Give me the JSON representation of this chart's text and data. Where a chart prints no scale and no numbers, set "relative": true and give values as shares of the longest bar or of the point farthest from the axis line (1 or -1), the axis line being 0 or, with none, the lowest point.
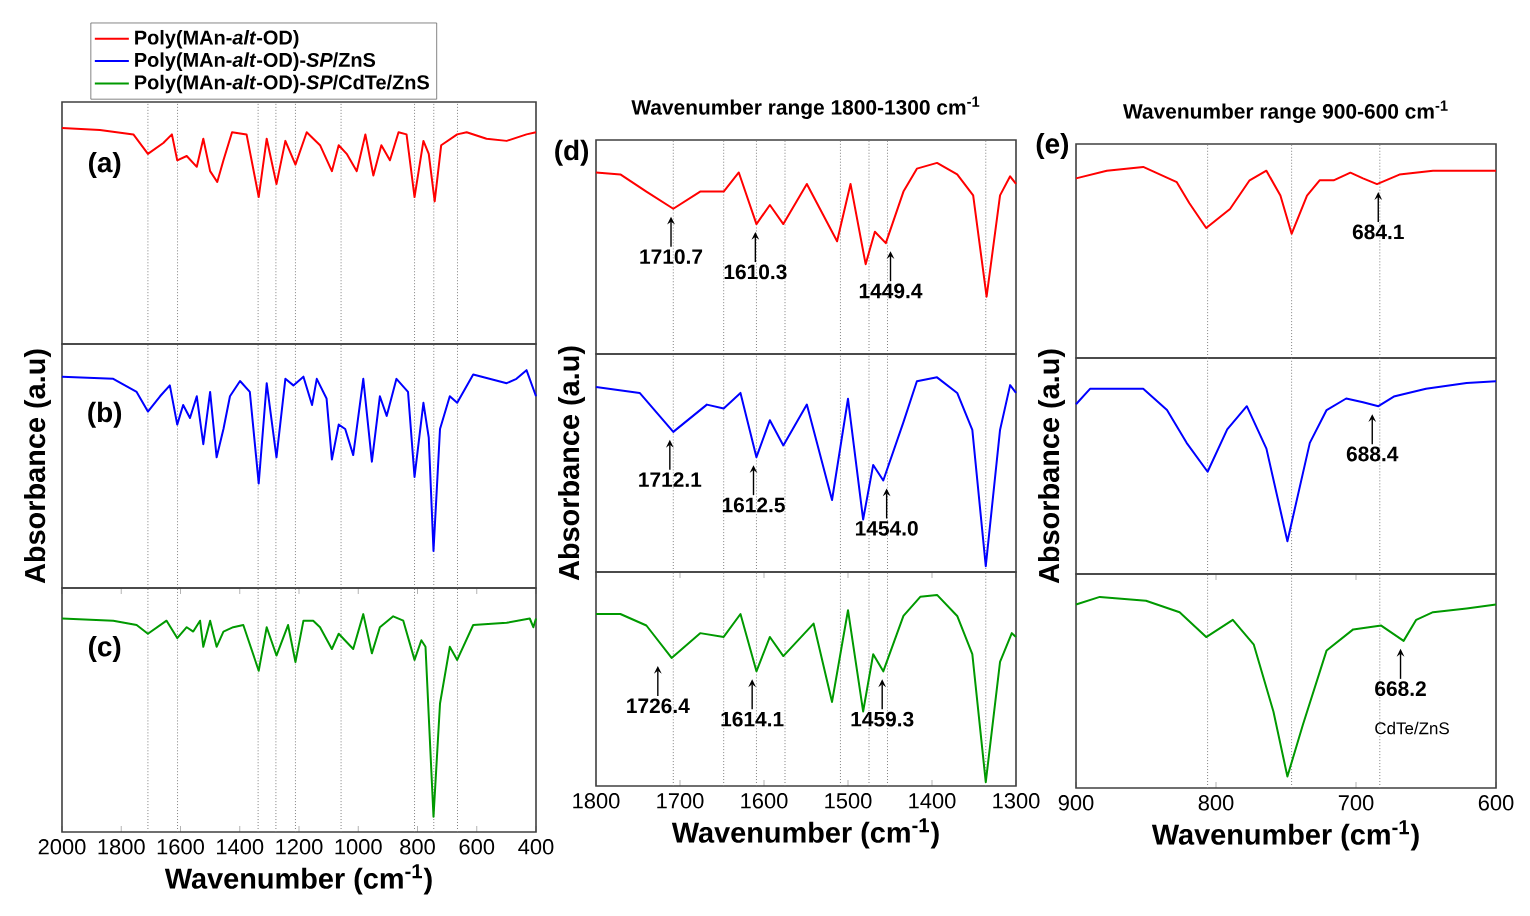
{
  "chart_data": [
    {
      "type": "line",
      "relative": true,
      "xlim": [
        2000,
        400
      ],
      "legend": "top left",
      "annotations": [
        "(a)"
      ],
      "ref_lines": [
        {
          "axis": "x",
          "value": 1710,
          "color": "#808080",
          "line_style": "dotted"
        },
        {
          "axis": "x",
          "value": 1610,
          "color": "#808080",
          "line_style": "dotted"
        },
        {
          "axis": "x",
          "value": 1338,
          "color": "#808080",
          "line_style": "dotted"
        },
        {
          "axis": "x",
          "value": 1278,
          "color": "#808080",
          "line_style": "dotted"
        },
        {
          "axis": "x",
          "value": 1212,
          "color": "#808080",
          "line_style": "dotted"
        },
        {
          "axis": "x",
          "value": 1058,
          "color": "#808080",
          "line_style": "dotted"
        },
        {
          "axis": "x",
          "value": 810,
          "color": "#808080",
          "line_style": "dotted"
        },
        {
          "axis": "x",
          "value": 745,
          "color": "#808080",
          "line_style": "dotted"
        },
        {
          "axis": "x",
          "value": 665,
          "color": "#808080",
          "line_style": "dotted"
        }
      ],
      "series": [
        {
          "name": "Poly(MAn-*alt*-OD)",
          "color": "#ff0000",
          "x": [
            2000,
            1872,
            1759,
            1710,
            1658,
            1629,
            1611,
            1579,
            1545,
            1523,
            1500,
            1476,
            1455,
            1426,
            1377,
            1336,
            1309,
            1276,
            1246,
            1212,
            1174,
            1129,
            1089,
            1066,
            1039,
            1005,
            976,
            949,
            922,
            893,
            864,
            837,
            810,
            780,
            762,
            742,
            720,
            666,
            634,
            567,
            499,
            432,
            400
          ],
          "values": [
            1.0,
            0.99,
            0.97,
            0.88,
            0.93,
            0.97,
            0.85,
            0.87,
            0.82,
            0.95,
            0.8,
            0.75,
            0.85,
            0.98,
            0.97,
            0.68,
            0.95,
            0.74,
            0.94,
            0.83,
            0.98,
            0.92,
            0.8,
            0.92,
            0.88,
            0.8,
            0.97,
            0.78,
            0.92,
            0.85,
            0.98,
            0.97,
            0.68,
            0.94,
            0.88,
            0.66,
            0.92,
            0.97,
            0.98,
            0.95,
            0.94,
            0.97,
            0.98
          ]
        }
      ]
    },
    {
      "type": "line",
      "relative": true,
      "xlim": [
        2000,
        400
      ],
      "ylabel": "Absorbance (a.u)",
      "annotations": [
        "(b)"
      ],
      "ref_lines": [
        {
          "axis": "x",
          "value": 1710,
          "color": "#808080",
          "line_style": "dotted"
        },
        {
          "axis": "x",
          "value": 1610,
          "color": "#808080",
          "line_style": "dotted"
        },
        {
          "axis": "x",
          "value": 1338,
          "color": "#808080",
          "line_style": "dotted"
        },
        {
          "axis": "x",
          "value": 1278,
          "color": "#808080",
          "line_style": "dotted"
        },
        {
          "axis": "x",
          "value": 1212,
          "color": "#808080",
          "line_style": "dotted"
        },
        {
          "axis": "x",
          "value": 1058,
          "color": "#808080",
          "line_style": "dotted"
        },
        {
          "axis": "x",
          "value": 810,
          "color": "#808080",
          "line_style": "dotted"
        },
        {
          "axis": "x",
          "value": 745,
          "color": "#808080",
          "line_style": "dotted"
        },
        {
          "axis": "x",
          "value": 665,
          "color": "#808080",
          "line_style": "dotted"
        }
      ],
      "series": [
        {
          "name": "Poly(MAn-*alt*-OD)-*SP*/ZnS",
          "color": "#0000ff",
          "x": [
            2000,
            1827,
            1748,
            1710,
            1669,
            1636,
            1611,
            1591,
            1568,
            1545,
            1523,
            1500,
            1478,
            1455,
            1433,
            1399,
            1366,
            1336,
            1309,
            1276,
            1246,
            1219,
            1185,
            1156,
            1140,
            1107,
            1089,
            1066,
            1044,
            1017,
            983,
            954,
            927,
            904,
            871,
            832,
            810,
            780,
            762,
            746,
            724,
            691,
            666,
            612,
            499,
            466,
            432,
            400
          ],
          "values": [
            0.97,
            0.96,
            0.9,
            0.81,
            0.88,
            0.93,
            0.75,
            0.84,
            0.78,
            0.88,
            0.66,
            0.9,
            0.6,
            0.73,
            0.88,
            0.95,
            0.9,
            0.48,
            0.94,
            0.6,
            0.96,
            0.93,
            0.97,
            0.84,
            0.96,
            0.87,
            0.59,
            0.75,
            0.73,
            0.61,
            0.96,
            0.58,
            0.88,
            0.79,
            0.96,
            0.9,
            0.51,
            0.85,
            0.69,
            0.17,
            0.73,
            0.88,
            0.85,
            0.98,
            0.94,
            0.96,
            1.0,
            0.88
          ]
        }
      ]
    },
    {
      "type": "line",
      "relative": true,
      "xlim": [
        2000,
        400
      ],
      "xticks": [
        2000,
        1800,
        1600,
        1400,
        1200,
        1000,
        800,
        600,
        400
      ],
      "xlabel": "Wavenumber (cm$^{-1}$)",
      "annotations": [
        "(c)"
      ],
      "ref_lines": [
        {
          "axis": "x",
          "value": 1710,
          "color": "#808080",
          "line_style": "dotted"
        },
        {
          "axis": "x",
          "value": 1610,
          "color": "#808080",
          "line_style": "dotted"
        },
        {
          "axis": "x",
          "value": 1338,
          "color": "#808080",
          "line_style": "dotted"
        },
        {
          "axis": "x",
          "value": 1278,
          "color": "#808080",
          "line_style": "dotted"
        },
        {
          "axis": "x",
          "value": 1212,
          "color": "#808080",
          "line_style": "dotted"
        },
        {
          "axis": "x",
          "value": 1058,
          "color": "#808080",
          "line_style": "dotted"
        },
        {
          "axis": "x",
          "value": 810,
          "color": "#808080",
          "line_style": "dotted"
        },
        {
          "axis": "x",
          "value": 745,
          "color": "#808080",
          "line_style": "dotted"
        },
        {
          "axis": "x",
          "value": 665,
          "color": "#808080",
          "line_style": "dotted"
        }
      ],
      "series": [
        {
          "name": "Poly(MAn-*alt*-OD)-*SP*/CdTe/ZnS",
          "color": "#009900",
          "x": [
            2000,
            1827,
            1748,
            1710,
            1647,
            1611,
            1579,
            1557,
            1534,
            1523,
            1500,
            1478,
            1455,
            1422,
            1388,
            1336,
            1309,
            1276,
            1237,
            1212,
            1185,
            1152,
            1129,
            1089,
            1066,
            1017,
            983,
            954,
            927,
            882,
            848,
            810,
            787,
            773,
            746,
            724,
            691,
            666,
            612,
            499,
            421,
            409,
            400
          ],
          "values": [
            0.98,
            0.97,
            0.95,
            0.91,
            0.97,
            0.89,
            0.94,
            0.92,
            0.97,
            0.85,
            0.97,
            0.85,
            0.92,
            0.94,
            0.95,
            0.74,
            0.94,
            0.81,
            0.95,
            0.78,
            0.97,
            0.97,
            0.94,
            0.84,
            0.91,
            0.84,
            1.0,
            0.82,
            0.94,
            0.99,
            0.97,
            0.79,
            0.88,
            0.85,
            0.07,
            0.59,
            0.85,
            0.79,
            0.95,
            0.96,
            0.98,
            0.94,
            0.98
          ]
        }
      ]
    },
    {
      "type": "line",
      "relative": true,
      "xlim": [
        1800,
        1300
      ],
      "title": "Wavenumber range 1800-1300 cm$^{-1}$",
      "annotations": [
        "(d)",
        {
          "text": "1710.7",
          "x": 1710.7,
          "y": 0.76
        },
        {
          "text": "1610.3",
          "x": 1610.3,
          "y": 0.68
        },
        {
          "text": "1449.4",
          "x": 1449.4,
          "y": 0.58
        }
      ],
      "ref_lines": [
        {
          "axis": "x",
          "value": 1708,
          "color": "#808080",
          "line_style": "dotted"
        },
        {
          "axis": "x",
          "value": 1648,
          "color": "#808080",
          "line_style": "dotted"
        },
        {
          "axis": "x",
          "value": 1609,
          "color": "#808080",
          "line_style": "dotted"
        },
        {
          "axis": "x",
          "value": 1575,
          "color": "#808080",
          "line_style": "dotted"
        },
        {
          "axis": "x",
          "value": 1509,
          "color": "#808080",
          "line_style": "dotted"
        },
        {
          "axis": "x",
          "value": 1475,
          "color": "#808080",
          "line_style": "dotted"
        },
        {
          "axis": "x",
          "value": 1453,
          "color": "#808080",
          "line_style": "dotted"
        },
        {
          "axis": "x",
          "value": 1336,
          "color": "#808080",
          "line_style": "dotted"
        }
      ],
      "series": [
        {
          "color": "#ff0000",
          "x": [
            1800,
            1771,
            1740,
            1708,
            1676,
            1648,
            1630,
            1609,
            1593,
            1577,
            1549,
            1513,
            1497,
            1479,
            1468,
            1455,
            1434,
            1418,
            1394,
            1370,
            1351,
            1335,
            1319,
            1307,
            1300
          ],
          "values": [
            0.95,
            0.94,
            0.85,
            0.76,
            0.85,
            0.85,
            0.95,
            0.68,
            0.78,
            0.68,
            0.89,
            0.59,
            0.89,
            0.47,
            0.64,
            0.58,
            0.85,
            0.97,
            1.0,
            0.94,
            0.83,
            0.3,
            0.83,
            0.93,
            0.89
          ]
        }
      ]
    },
    {
      "type": "line",
      "relative": true,
      "xlim": [
        1800,
        1300
      ],
      "ylabel": "Absorbance (a.u)",
      "annotations": [
        {
          "text": "1712.1",
          "x": 1712.1,
          "y": 0.72
        },
        {
          "text": "1612.5",
          "x": 1612.5,
          "y": 0.59
        },
        {
          "text": "1454.0",
          "x": 1454.0,
          "y": 0.47
        }
      ],
      "ref_lines": [
        {
          "axis": "x",
          "value": 1708,
          "color": "#808080",
          "line_style": "dotted"
        },
        {
          "axis": "x",
          "value": 1648,
          "color": "#808080",
          "line_style": "dotted"
        },
        {
          "axis": "x",
          "value": 1609,
          "color": "#808080",
          "line_style": "dotted"
        },
        {
          "axis": "x",
          "value": 1575,
          "color": "#808080",
          "line_style": "dotted"
        },
        {
          "axis": "x",
          "value": 1509,
          "color": "#808080",
          "line_style": "dotted"
        },
        {
          "axis": "x",
          "value": 1475,
          "color": "#808080",
          "line_style": "dotted"
        },
        {
          "axis": "x",
          "value": 1453,
          "color": "#808080",
          "line_style": "dotted"
        },
        {
          "axis": "x",
          "value": 1336,
          "color": "#808080",
          "line_style": "dotted"
        }
      ],
      "series": [
        {
          "color": "#0000ff",
          "x": [
            1800,
            1748,
            1708,
            1668,
            1648,
            1628,
            1609,
            1593,
            1577,
            1549,
            1519,
            1500,
            1482,
            1470,
            1458,
            1434,
            1418,
            1394,
            1370,
            1352,
            1336,
            1319,
            1307,
            1300
          ],
          "values": [
            0.95,
            0.92,
            0.72,
            0.86,
            0.84,
            0.92,
            0.59,
            0.78,
            0.65,
            0.86,
            0.37,
            0.89,
            0.27,
            0.55,
            0.47,
            0.77,
            0.98,
            1.0,
            0.92,
            0.73,
            0.03,
            0.73,
            0.96,
            0.92
          ]
        }
      ]
    },
    {
      "type": "line",
      "relative": true,
      "xlim": [
        1800,
        1300
      ],
      "xticks": [
        1800,
        1700,
        1600,
        1500,
        1400,
        1300
      ],
      "xlabel": "Wavenumber (cm$^{-1}$)",
      "annotations": [
        {
          "text": "1726.4",
          "x": 1726.4,
          "y": 0.67
        },
        {
          "text": "1614.1",
          "x": 1614.1,
          "y": 0.6
        },
        {
          "text": "1459.3",
          "x": 1459.3,
          "y": 0.6
        }
      ],
      "ref_lines": [
        {
          "axis": "x",
          "value": 1708,
          "color": "#808080",
          "line_style": "dotted"
        },
        {
          "axis": "x",
          "value": 1648,
          "color": "#808080",
          "line_style": "dotted"
        },
        {
          "axis": "x",
          "value": 1609,
          "color": "#808080",
          "line_style": "dotted"
        },
        {
          "axis": "x",
          "value": 1575,
          "color": "#808080",
          "line_style": "dotted"
        },
        {
          "axis": "x",
          "value": 1509,
          "color": "#808080",
          "line_style": "dotted"
        },
        {
          "axis": "x",
          "value": 1475,
          "color": "#808080",
          "line_style": "dotted"
        },
        {
          "axis": "x",
          "value": 1453,
          "color": "#808080",
          "line_style": "dotted"
        },
        {
          "axis": "x",
          "value": 1336,
          "color": "#808080",
          "line_style": "dotted"
        }
      ],
      "series": [
        {
          "color": "#009900",
          "x": [
            1800,
            1771,
            1740,
            1710,
            1676,
            1648,
            1628,
            1609,
            1593,
            1577,
            1541,
            1519,
            1500,
            1482,
            1470,
            1458,
            1434,
            1414,
            1394,
            1370,
            1352,
            1336,
            1319,
            1305,
            1300
          ],
          "values": [
            0.9,
            0.9,
            0.84,
            0.67,
            0.8,
            0.78,
            0.9,
            0.6,
            0.78,
            0.68,
            0.85,
            0.44,
            0.92,
            0.39,
            0.69,
            0.6,
            0.89,
            0.99,
            1.0,
            0.89,
            0.69,
            0.02,
            0.65,
            0.8,
            0.78
          ]
        }
      ]
    },
    {
      "type": "line",
      "relative": true,
      "xlim": [
        900,
        600
      ],
      "title": "Wavenumber range 900-600 cm$^{-1}$",
      "annotations": [
        "(e)",
        {
          "text": "684.1",
          "x": 684.1,
          "y": 0.91
        }
      ],
      "ref_lines": [
        {
          "axis": "x",
          "value": 806,
          "color": "#808080",
          "line_style": "dotted"
        },
        {
          "axis": "x",
          "value": 746,
          "color": "#808080",
          "line_style": "dotted"
        },
        {
          "axis": "x",
          "value": 683,
          "color": "#808080",
          "line_style": "dotted"
        }
      ],
      "series": [
        {
          "color": "#ff0000",
          "x": [
            900,
            878,
            852,
            828,
            819,
            807,
            790,
            776,
            764,
            754,
            746,
            735,
            726,
            716,
            704,
            695,
            685,
            669,
            645,
            600
          ],
          "values": [
            0.94,
            0.98,
            1.0,
            0.92,
            0.81,
            0.68,
            0.78,
            0.93,
            0.98,
            0.85,
            0.65,
            0.85,
            0.93,
            0.93,
            0.97,
            0.94,
            0.91,
            0.96,
            0.98,
            0.98
          ]
        }
      ]
    },
    {
      "type": "line",
      "relative": true,
      "xlim": [
        900,
        600
      ],
      "ylabel": "Absorbance (a.u)",
      "annotations": [
        {
          "text": "688.4",
          "x": 688.4,
          "y": 0.87
        }
      ],
      "ref_lines": [
        {
          "axis": "x",
          "value": 806,
          "color": "#808080",
          "line_style": "dotted"
        },
        {
          "axis": "x",
          "value": 746,
          "color": "#808080",
          "line_style": "dotted"
        },
        {
          "axis": "x",
          "value": 683,
          "color": "#808080",
          "line_style": "dotted"
        }
      ],
      "series": [
        {
          "color": "#0000ff",
          "x": [
            900,
            890,
            859,
            852,
            835,
            821,
            806,
            792,
            778,
            764,
            749,
            733,
            721,
            707,
            695,
            684,
            673,
            650,
            621,
            600
          ],
          "values": [
            0.88,
            0.96,
            0.96,
            0.96,
            0.85,
            0.68,
            0.53,
            0.75,
            0.87,
            0.65,
            0.17,
            0.68,
            0.85,
            0.91,
            0.89,
            0.87,
            0.92,
            0.96,
            0.99,
            1.0
          ]
        }
      ]
    },
    {
      "type": "line",
      "relative": true,
      "xlim": [
        900,
        600
      ],
      "xticks": [
        900,
        800,
        700,
        600
      ],
      "xlabel": "Wavenumber (cm$^{-1}$)",
      "annotations": [
        {
          "text": "668.2",
          "x": 668.2,
          "y": 0.77
        },
        "CdTe/ZnS"
      ],
      "ref_lines": [
        {
          "axis": "x",
          "value": 806,
          "color": "#808080",
          "line_style": "dotted"
        },
        {
          "axis": "x",
          "value": 746,
          "color": "#808080",
          "line_style": "dotted"
        },
        {
          "axis": "x",
          "value": 683,
          "color": "#808080",
          "line_style": "dotted"
        }
      ],
      "series": [
        {
          "color": "#009900",
          "x": [
            900,
            883,
            850,
            826,
            807,
            788,
            773,
            759,
            749,
            738,
            721,
            702,
            682,
            666,
            657,
            645,
            621,
            600
          ],
          "values": [
            0.96,
            1.0,
            0.98,
            0.92,
            0.79,
            0.88,
            0.75,
            0.4,
            0.06,
            0.33,
            0.72,
            0.83,
            0.85,
            0.77,
            0.88,
            0.92,
            0.94,
            0.96
          ]
        }
      ]
    }
  ]
}
